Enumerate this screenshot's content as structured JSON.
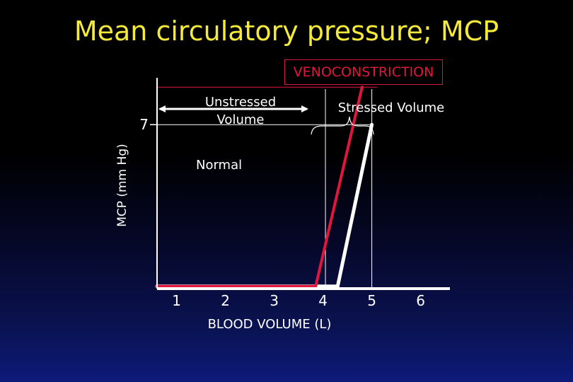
{
  "title": "Mean circulatory pressure; MCP",
  "badge": {
    "label": "VENOCONSTRICTION"
  },
  "annotations": {
    "unstressed_line1": "Unstressed",
    "unstressed_line2": "Volume",
    "stressed": "Stressed Volume",
    "normal": "Normal"
  },
  "colors": {
    "title": "#f5ea3a",
    "venoconstriction": "#e0163c",
    "normal_curve": "#ffffff",
    "axes": "#ffffff"
  },
  "chart_data": {
    "type": "line",
    "xlabel": "BLOOD  VOLUME  (L)",
    "ylabel": "MCP  (mm Hg)",
    "xlim": [
      0.6,
      6.6
    ],
    "ylim": [
      0,
      9
    ],
    "x_ticks": [
      "1",
      "2",
      "3",
      "4",
      "5",
      "6"
    ],
    "y_ticks": [
      {
        "value": 7,
        "label": "7"
      }
    ],
    "grid": false,
    "series": [
      {
        "name": "Normal",
        "color": "#ffffff",
        "points": [
          [
            0.6,
            0.1
          ],
          [
            4.05,
            0.1
          ],
          [
            4.3,
            0.1
          ],
          [
            5.0,
            7.0
          ]
        ]
      },
      {
        "name": "VENOCONSTRICTION",
        "color": "#e0163c",
        "points": [
          [
            0.6,
            0.1
          ],
          [
            3.85,
            0.1
          ],
          [
            4.8,
            8.6
          ]
        ]
      }
    ],
    "reference_lines": [
      {
        "kind": "vertical",
        "x": 4.05,
        "color": "#ffffff"
      },
      {
        "kind": "vertical",
        "x": 5.0,
        "color": "#ffffff"
      },
      {
        "kind": "horizontal",
        "y": 7.0,
        "color": "#ffffff"
      },
      {
        "kind": "horizontal",
        "y": 8.6,
        "color": "#e0163c"
      }
    ]
  }
}
